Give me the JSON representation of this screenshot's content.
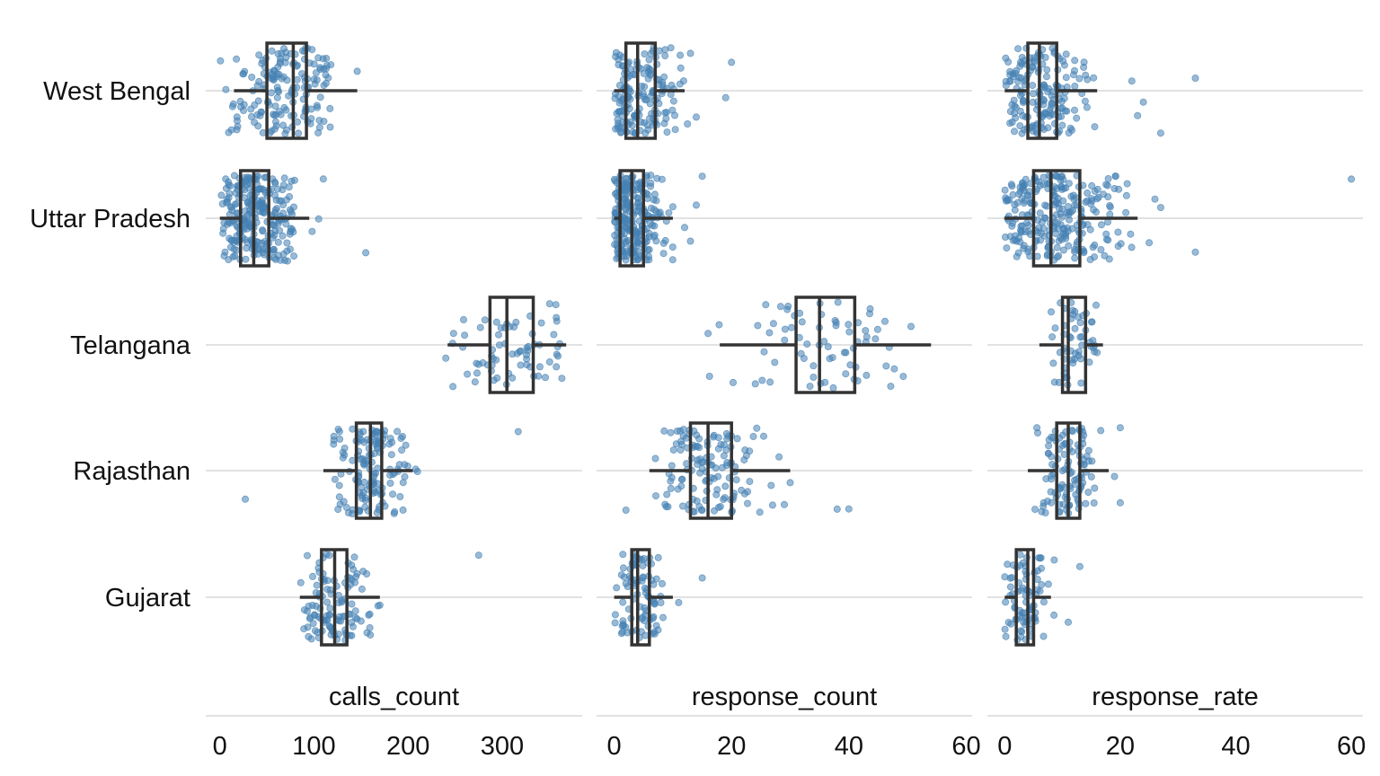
{
  "chart_data": {
    "type": "boxplot",
    "style": "horizontal box plots with jittered points, faceted by metric",
    "categories": [
      "West Bengal",
      "Uttar Pradesh",
      "Telangana",
      "Rajasthan",
      "Gujarat"
    ],
    "point_color": "#4682B4",
    "box_color": "#333333",
    "grid_color": "#D9D9D9",
    "panels": [
      {
        "title": "calls_count",
        "xlim": [
          -15,
          385
        ],
        "ticks": [
          0,
          100,
          200,
          300
        ],
        "tick_labels": [
          "0",
          "100",
          "200",
          "300"
        ],
        "boxes": [
          {
            "category": "West Bengal",
            "min": 15,
            "q1": 50,
            "median": 78,
            "q3": 92,
            "max": 146
          },
          {
            "category": "Uttar Pradesh",
            "min": 0,
            "q1": 22,
            "median": 36,
            "q3": 52,
            "max": 95
          },
          {
            "category": "Telangana",
            "min": 242,
            "q1": 287,
            "median": 305,
            "q3": 333,
            "max": 368
          },
          {
            "category": "Rajasthan",
            "min": 110,
            "q1": 145,
            "median": 160,
            "q3": 172,
            "max": 205
          },
          {
            "category": "Gujarat",
            "min": 85,
            "q1": 108,
            "median": 122,
            "q3": 135,
            "max": 170
          }
        ],
        "jitter_points": [
          {
            "category": "West Bengal",
            "n": 160,
            "lo": 0,
            "hi": 120,
            "extra": [
              146,
              100,
              118
            ]
          },
          {
            "category": "Uttar Pradesh",
            "n": 260,
            "lo": 0,
            "hi": 80,
            "extra": [
              155,
              110,
              105,
              98
            ]
          },
          {
            "category": "Telangana",
            "n": 70,
            "lo": 240,
            "hi": 370,
            "extra": []
          },
          {
            "category": "Rajasthan",
            "n": 140,
            "lo": 120,
            "hi": 200,
            "extra": [
              27,
              317,
              210,
              208
            ]
          },
          {
            "category": "Gujarat",
            "n": 110,
            "lo": 85,
            "hi": 160,
            "extra": [
              275,
              170,
              168
            ]
          }
        ]
      },
      {
        "title": "response_count",
        "xlim": [
          -3,
          61
        ],
        "ticks": [
          0,
          20,
          40,
          60
        ],
        "tick_labels": [
          "0",
          "20",
          "40",
          "60"
        ],
        "boxes": [
          {
            "category": "West Bengal",
            "min": 0,
            "q1": 2,
            "median": 4,
            "q3": 7,
            "max": 12
          },
          {
            "category": "Uttar Pradesh",
            "min": 0,
            "q1": 1,
            "median": 3,
            "q3": 5,
            "max": 10
          },
          {
            "category": "Telangana",
            "min": 18,
            "q1": 31,
            "median": 35,
            "q3": 41,
            "max": 54
          },
          {
            "category": "Rajasthan",
            "min": 6,
            "q1": 13,
            "median": 16,
            "q3": 20,
            "max": 30
          },
          {
            "category": "Gujarat",
            "min": 0,
            "q1": 3,
            "median": 4,
            "q3": 6,
            "max": 10
          }
        ],
        "jitter_points": [
          {
            "category": "West Bengal",
            "n": 160,
            "lo": 0,
            "hi": 12,
            "extra": [
              19,
              20,
              13,
              14,
              12.5
            ]
          },
          {
            "category": "Uttar Pradesh",
            "n": 240,
            "lo": 0,
            "hi": 10,
            "extra": [
              15,
              14,
              13,
              12
            ]
          },
          {
            "category": "Telangana",
            "n": 70,
            "lo": 16,
            "hi": 58,
            "extra": [
              16
            ]
          },
          {
            "category": "Rajasthan",
            "n": 130,
            "lo": 7,
            "hi": 30,
            "extra": [
              2,
              38,
              40,
              30,
              29
            ]
          },
          {
            "category": "Gujarat",
            "n": 90,
            "lo": 0,
            "hi": 10,
            "extra": [
              15,
              11
            ]
          }
        ]
      },
      {
        "title": "response_rate",
        "xlim": [
          -3,
          62
        ],
        "ticks": [
          0,
          20,
          40,
          60
        ],
        "tick_labels": [
          "0",
          "20",
          "40",
          "60"
        ],
        "boxes": [
          {
            "category": "West Bengal",
            "min": 0,
            "q1": 4,
            "median": 6,
            "q3": 9,
            "max": 16
          },
          {
            "category": "Uttar Pradesh",
            "min": 0,
            "q1": 5,
            "median": 8,
            "q3": 13,
            "max": 23
          },
          {
            "category": "Telangana",
            "min": 6,
            "q1": 10,
            "median": 11,
            "q3": 14,
            "max": 17
          },
          {
            "category": "Rajasthan",
            "min": 4,
            "q1": 9,
            "median": 11,
            "q3": 13,
            "max": 18
          },
          {
            "category": "Gujarat",
            "min": 0,
            "q1": 2,
            "median": 4,
            "q3": 5,
            "max": 8
          }
        ],
        "jitter_points": [
          {
            "category": "West Bengal",
            "n": 170,
            "lo": 0,
            "hi": 16,
            "extra": [
              27,
              33,
              23,
              22,
              24
            ]
          },
          {
            "category": "Uttar Pradesh",
            "n": 260,
            "lo": 0,
            "hi": 22,
            "extra": [
              60,
              33,
              27,
              25,
              26
            ]
          },
          {
            "category": "Telangana",
            "n": 55,
            "lo": 8,
            "hi": 17,
            "extra": []
          },
          {
            "category": "Rajasthan",
            "n": 110,
            "lo": 5,
            "hi": 18,
            "extra": [
              20,
              19,
              20
            ]
          },
          {
            "category": "Gujarat",
            "n": 80,
            "lo": 0,
            "hi": 9,
            "extra": [
              13,
              11
            ]
          }
        ]
      }
    ]
  }
}
